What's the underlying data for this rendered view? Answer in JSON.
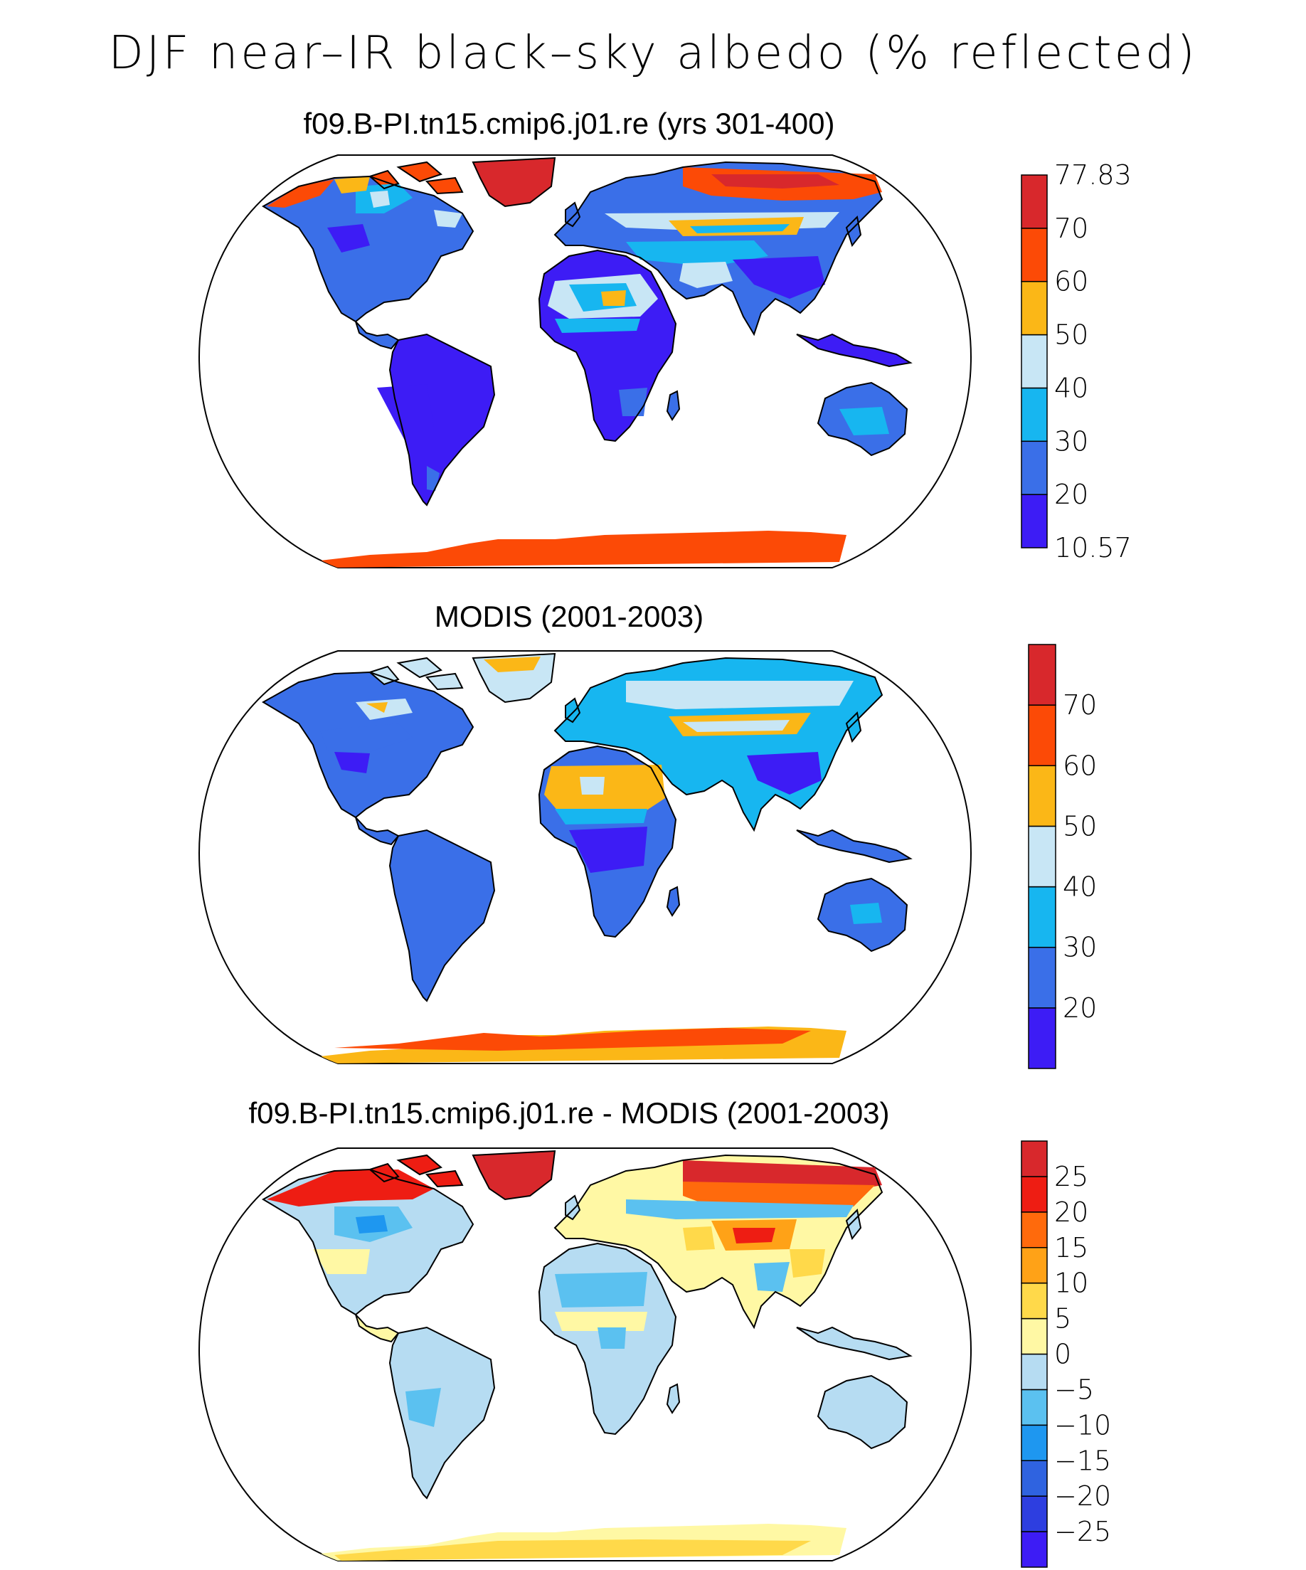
{
  "figure": {
    "title": "DJF near–IR black–sky albedo (% reflected)"
  },
  "panels": [
    {
      "title": "f09.B-PI.tn15.cmip6.j01.re (yrs 301-400)",
      "colorbar": {
        "colors": [
          "#3d1cf5",
          "#3a6fe8",
          "#17b6f0",
          "#c8e6f5",
          "#fbb717",
          "#fc4a06",
          "#d8282c"
        ],
        "labels": [
          "10.57",
          "20",
          "30",
          "40",
          "50",
          "60",
          "70",
          "77.83"
        ]
      }
    },
    {
      "title": "MODIS (2001-2003)",
      "colorbar": {
        "colors": [
          "#3d1cf5",
          "#3a6fe8",
          "#17b6f0",
          "#c8e6f5",
          "#fbb717",
          "#fc4a06",
          "#d8282c"
        ],
        "labels": [
          "20",
          "30",
          "40",
          "50",
          "60",
          "70"
        ]
      }
    },
    {
      "title": "f09.B-PI.tn15.cmip6.j01.re - MODIS (2001-2003)",
      "colorbar": {
        "colors": [
          "#3d1cf5",
          "#2d3ee0",
          "#2f63e0",
          "#1e97f0",
          "#5bc1f0",
          "#b6dcf2",
          "#fff8a4",
          "#ffd94a",
          "#ffa217",
          "#ff6a0c",
          "#ee1d13",
          "#d8282c"
        ],
        "labels": [
          "−25",
          "−20",
          "−15",
          "−10",
          "−5",
          "0",
          "5",
          "10",
          "15",
          "20",
          "25"
        ]
      }
    }
  ]
}
